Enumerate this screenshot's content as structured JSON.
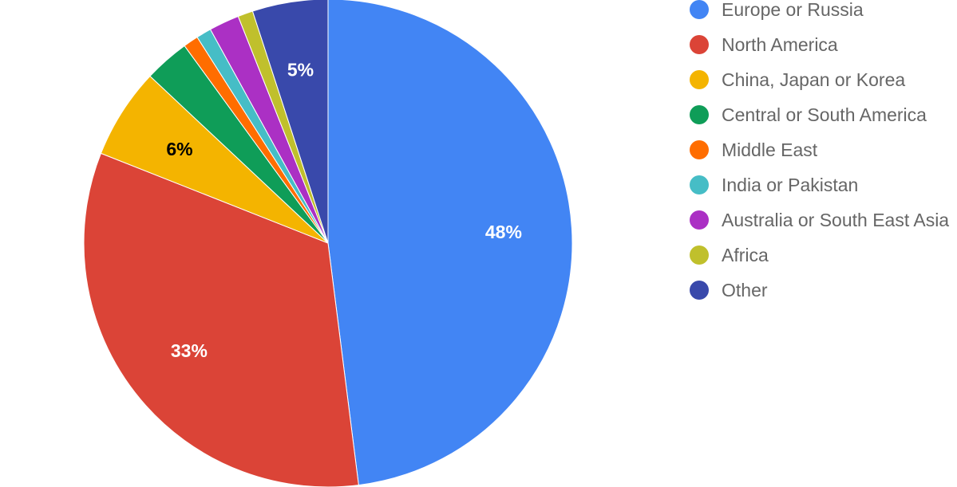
{
  "chart_data": {
    "type": "pie",
    "categories": [
      "Europe or Russia",
      "North America",
      "China, Japan or Korea",
      "Central or South America",
      "Middle East",
      "India or Pakistan",
      "Australia or South East Asia",
      "Africa",
      "Other"
    ],
    "values": [
      48,
      33,
      6,
      3,
      1,
      1,
      2,
      1,
      5
    ],
    "data_labels": [
      "48%",
      "33%",
      "6%",
      "",
      "",
      "",
      "",
      "",
      "5%"
    ],
    "colors": [
      "#4285f4",
      "#db4437",
      "#f4b400",
      "#0f9d58",
      "#ff6d00",
      "#46bdc6",
      "#ab30c4",
      "#c0c02c",
      "#3949ab"
    ],
    "label_colors": [
      "#ffffff",
      "#ffffff",
      "#000000",
      "#ffffff",
      "#ffffff",
      "#ffffff",
      "#ffffff",
      "#ffffff",
      "#ffffff"
    ],
    "start_direction": "top",
    "direction": "clockwise",
    "legend_position": "right"
  }
}
